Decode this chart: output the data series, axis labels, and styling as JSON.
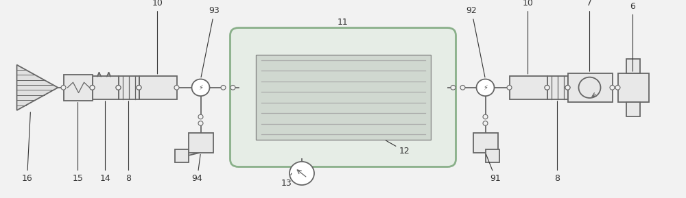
{
  "bg_color": "#f2f2f2",
  "lc": "#666666",
  "ec": "#666666",
  "fc_comp": "#e8e8e8",
  "fc_green": "#e6ede6",
  "ec_green": "#8ab08a",
  "fc_inner": "#d0d8d0",
  "lw": 1.3,
  "conn_r": 0.006,
  "label_fs": 9,
  "label_color": "#333333",
  "fig_w": 10.0,
  "fig_h": 2.89,
  "dpi": 100
}
